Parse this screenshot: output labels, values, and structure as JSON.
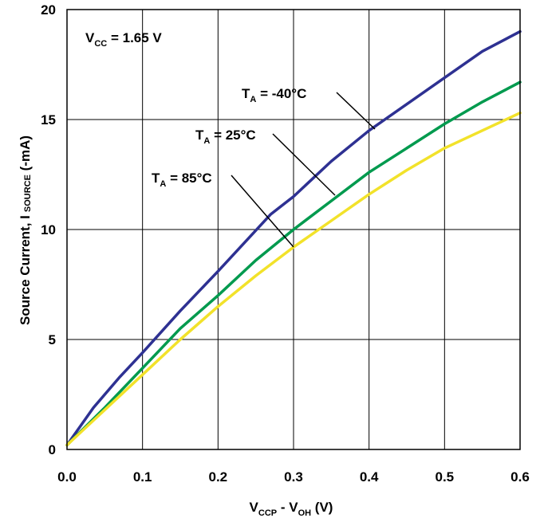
{
  "chart_data": {
    "type": "line",
    "title": "",
    "xlabel": {
      "main": "V",
      "sub1": "CCP",
      "mid": " - V",
      "sub2": "OH",
      "tail": " (V)"
    },
    "ylabel": {
      "main": "Source Current, I",
      "sub": "SOURCE",
      "tail": " (-mA)"
    },
    "xlim": [
      0,
      0.6
    ],
    "ylim": [
      0,
      20
    ],
    "xticks": [
      "0.0",
      "0.1",
      "0.2",
      "0.3",
      "0.4",
      "0.5",
      "0.6"
    ],
    "yticks": [
      "0",
      "5",
      "10",
      "15",
      "20"
    ],
    "grid": true,
    "annotation": {
      "main": "V",
      "sub": "CC",
      "tail": " = 1.65 V"
    },
    "series": [
      {
        "name": "-40°C",
        "label": {
          "main": "T",
          "sub": "A",
          "tail": " = -40°C"
        },
        "color": "#2e3192",
        "points": [
          [
            0,
            0.2
          ],
          [
            0.035,
            1.9
          ],
          [
            0.07,
            3.3
          ],
          [
            0.1,
            4.4
          ],
          [
            0.15,
            6.3
          ],
          [
            0.2,
            8.1
          ],
          [
            0.27,
            10.7
          ],
          [
            0.3,
            11.5
          ],
          [
            0.35,
            13.1
          ],
          [
            0.4,
            14.5
          ],
          [
            0.45,
            15.7
          ],
          [
            0.5,
            16.9
          ],
          [
            0.55,
            18.1
          ],
          [
            0.6,
            19.0
          ]
        ]
      },
      {
        "name": "25°C",
        "label": {
          "main": "T",
          "sub": "A",
          "tail": " = 25°C"
        },
        "color": "#009a4e",
        "points": [
          [
            0,
            0.2
          ],
          [
            0.05,
            1.9
          ],
          [
            0.1,
            3.7
          ],
          [
            0.15,
            5.5
          ],
          [
            0.2,
            7.0
          ],
          [
            0.25,
            8.6
          ],
          [
            0.3,
            10.0
          ],
          [
            0.35,
            11.3
          ],
          [
            0.4,
            12.6
          ],
          [
            0.45,
            13.7
          ],
          [
            0.5,
            14.8
          ],
          [
            0.55,
            15.8
          ],
          [
            0.6,
            16.7
          ]
        ]
      },
      {
        "name": "85°C",
        "label": {
          "main": "T",
          "sub": "A",
          "tail": " = 85°C"
        },
        "color": "#f2e22a",
        "points": [
          [
            0,
            0.2
          ],
          [
            0.05,
            1.8
          ],
          [
            0.1,
            3.4
          ],
          [
            0.15,
            5.0
          ],
          [
            0.2,
            6.5
          ],
          [
            0.25,
            7.9
          ],
          [
            0.3,
            9.2
          ],
          [
            0.35,
            10.4
          ],
          [
            0.4,
            11.6
          ],
          [
            0.45,
            12.7
          ],
          [
            0.5,
            13.7
          ],
          [
            0.55,
            14.5
          ],
          [
            0.6,
            15.3
          ]
        ]
      }
    ]
  }
}
